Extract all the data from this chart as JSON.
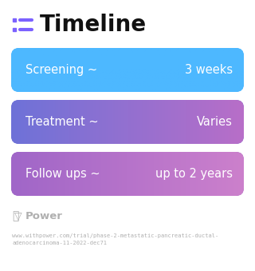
{
  "title": "Timeline",
  "title_fontsize": 20,
  "title_color": "#111111",
  "icon_color": "#7b61ff",
  "background_color": "#ffffff",
  "rows": [
    {
      "left_label": "Screening ~",
      "right_label": "3 weeks",
      "color_left": "#4db8ff",
      "color_right": "#4db8ff"
    },
    {
      "left_label": "Treatment ~",
      "right_label": "Varies",
      "color_left": "#6e72d8",
      "color_right": "#b86ec8"
    },
    {
      "left_label": "Follow ups ~",
      "right_label": "up to 2 years",
      "color_left": "#a066c8",
      "color_right": "#cc80cc"
    }
  ],
  "footer_logo_text": "Power",
  "footer_url": "www.withpower.com/trial/phase-2-metastatic-pancreatic-ductal-\nadenocarcinoma-11-2022-dec71",
  "footer_color": "#b0b0b0",
  "text_color": "#ffffff",
  "label_fontsize": 10.5
}
